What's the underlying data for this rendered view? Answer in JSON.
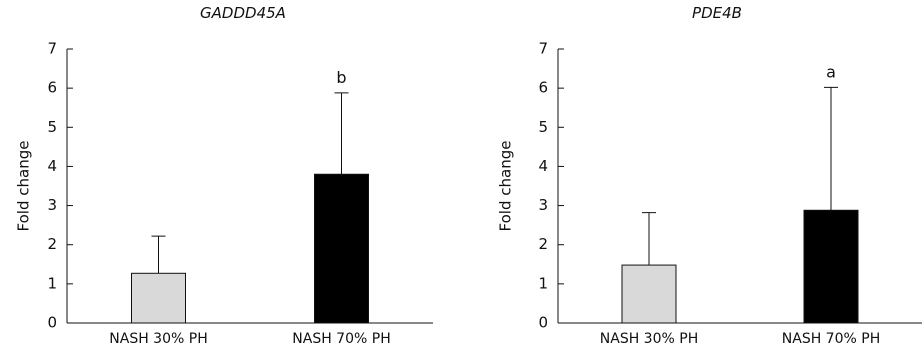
{
  "chart_data": [
    {
      "type": "bar",
      "title": "GADDD45A",
      "ylabel": "Fold change",
      "xlabel": "",
      "ylim": [
        0,
        7
      ],
      "yticks": [
        0,
        1,
        2,
        3,
        4,
        5,
        6,
        7
      ],
      "categories": [
        "NASH 30% PH",
        "NASH 70% PH"
      ],
      "values": [
        1.27,
        3.8
      ],
      "error_upper": [
        0.95,
        2.08
      ],
      "bar_colors": [
        "#d9d9d9",
        "#000000"
      ],
      "annotations": [
        "",
        "b"
      ],
      "grid": false,
      "legend": "none"
    },
    {
      "type": "bar",
      "title": "PDE4B",
      "ylabel": "Fold change",
      "xlabel": "",
      "ylim": [
        0,
        7
      ],
      "yticks": [
        0,
        1,
        2,
        3,
        4,
        5,
        6,
        7
      ],
      "categories": [
        "NASH 30% PH",
        "NASH 70% PH"
      ],
      "values": [
        1.48,
        2.88
      ],
      "error_upper": [
        1.34,
        3.14
      ],
      "bar_colors": [
        "#d9d9d9",
        "#000000"
      ],
      "annotations": [
        "",
        "a"
      ],
      "grid": false,
      "legend": "none"
    }
  ]
}
